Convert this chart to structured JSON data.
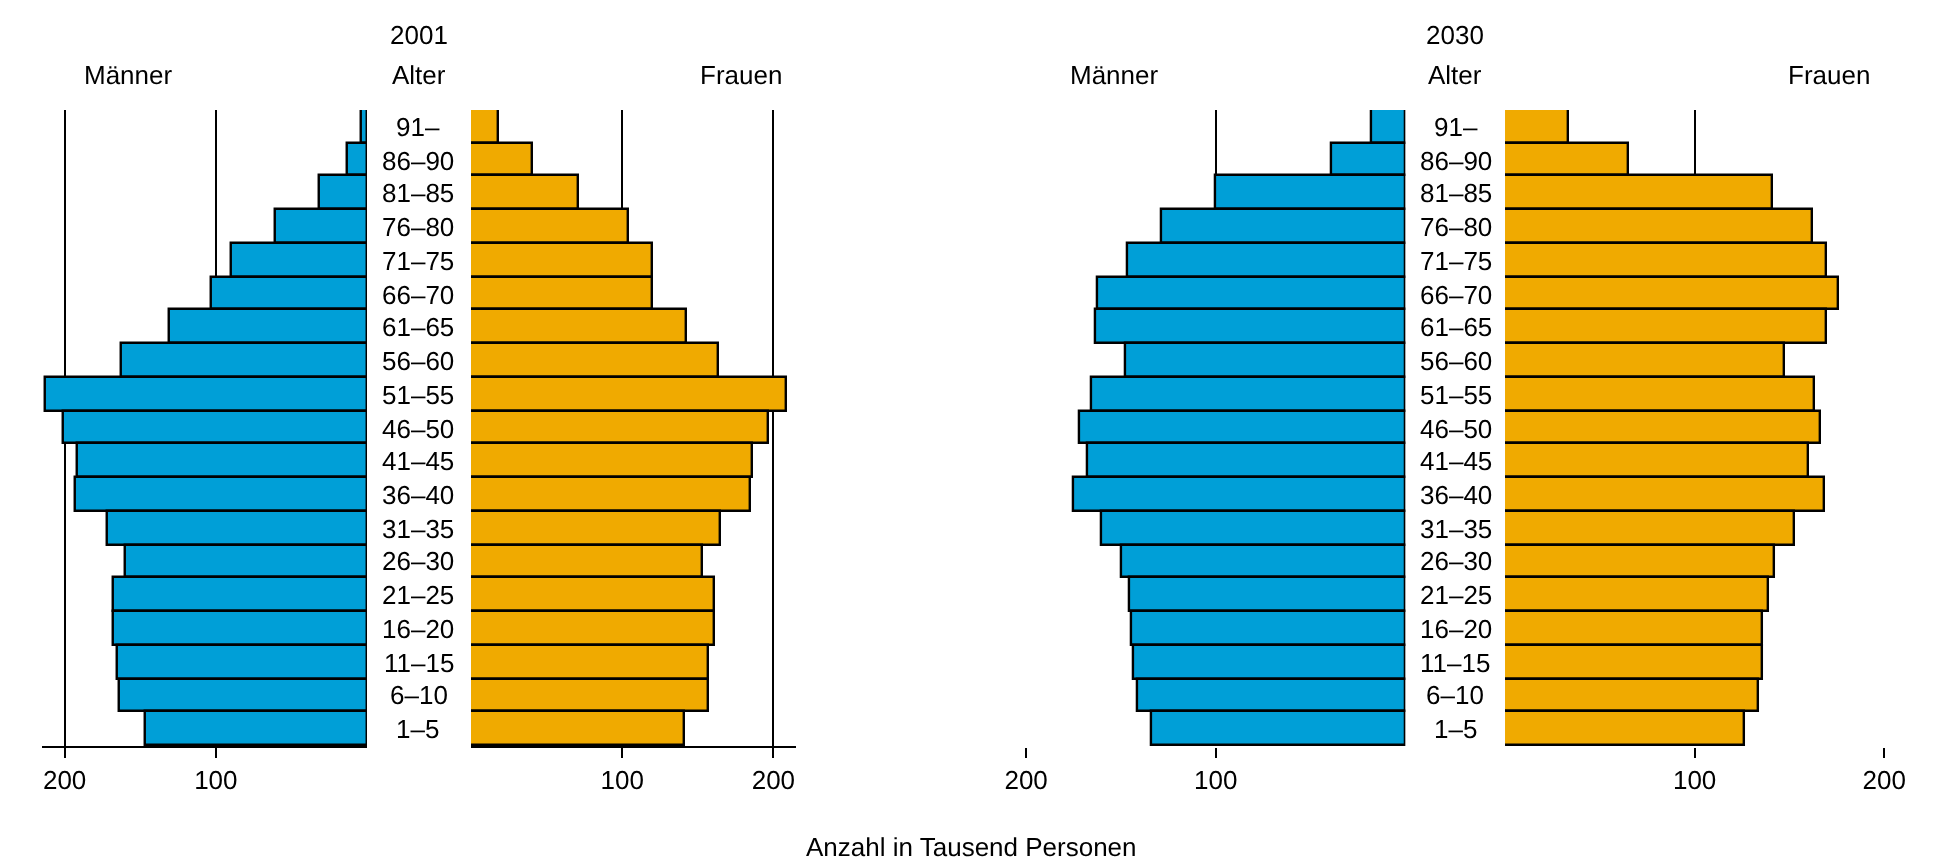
{
  "chart_data": [
    {
      "type": "bar",
      "orientation": "horizontal",
      "title": "Männer",
      "tick_labels": "x",
      "grid": "x",
      "categories": [
        "91–",
        "86–90",
        "81–85",
        "76–80",
        "71–75",
        "66–70",
        "61–65",
        "56–60",
        "51–55",
        "46–50",
        "41–45",
        "36–40",
        "31–35",
        "26–30",
        "21–25",
        "16–20",
        "11–15",
        "6–10",
        "1–5"
      ],
      "xlim": [
        215,
        0
      ],
      "xticks": [
        200,
        100
      ],
      "series": [
        {
          "color": "#009fd7",
          "values": [
            4,
            13,
            31,
            60,
            90,
            103,
            131,
            162,
            212,
            201,
            191,
            192,
            171,
            160,
            167,
            168,
            165,
            164,
            146
          ]
        }
      ]
    },
    {
      "type": "bar",
      "orientation": "horizontal",
      "title": "Frauen",
      "subtitle": "2001",
      "ylabel": "Alter",
      "grid": "x",
      "categories": [
        "91–",
        "86–90",
        "81–85",
        "76–80",
        "71–75",
        "66–70",
        "61–65",
        "56–60",
        "51–55",
        "46–50",
        "41–45",
        "36–40",
        "31–35",
        "26–30",
        "21–25",
        "16–20",
        "11–15",
        "6–10",
        "1–5"
      ],
      "xlim": [
        0,
        215
      ],
      "xticks": [
        100,
        200
      ],
      "series": [
        {
          "color": "#f0aa00",
          "values": [
            18,
            41,
            72,
            105,
            121,
            121,
            143,
            164,
            209,
            197,
            187,
            185,
            165,
            153,
            161,
            161,
            158,
            158,
            141
          ]
        }
      ]
    },
    {
      "type": "bar",
      "orientation": "horizontal",
      "title": "Männer",
      "tick_labels": "x",
      "grid": "x",
      "categories": [
        "91–",
        "86–90",
        "81–85",
        "76–80",
        "71–75",
        "66–70",
        "61–65",
        "56–60",
        "51–55",
        "46–50",
        "41–45",
        "36–40",
        "31–35",
        "26–30",
        "21–25",
        "16–20",
        "11–15",
        "6–10",
        "1–5"
      ],
      "xlim": [
        200,
        0
      ],
      "xticks": [
        200,
        100
      ],
      "series": [
        {
          "color": "#009fd7",
          "values": [
            17,
            39,
            100,
            128,
            146,
            162,
            163,
            147,
            165,
            172,
            167,
            175,
            160,
            149,
            145,
            144,
            143,
            141,
            134
          ]
        }
      ]
    },
    {
      "type": "bar",
      "orientation": "horizontal",
      "title": "Frauen",
      "subtitle": "2030",
      "ylabel": "Alter",
      "grid": "x",
      "categories": [
        "91–",
        "86–90",
        "81–85",
        "76–80",
        "71–75",
        "66–70",
        "61–65",
        "56–60",
        "51–55",
        "46–50",
        "41–45",
        "36–40",
        "31–35",
        "26–30",
        "21–25",
        "16–20",
        "11–15",
        "6–10",
        "1–5"
      ],
      "xlim": [
        0,
        200
      ],
      "xticks": [
        100,
        200
      ],
      "annotations": [
        "Anzahl in Tausend Personen"
      ],
      "series": [
        {
          "color": "#f0aa00",
          "values": [
            34,
            65,
            141,
            162,
            170,
            176,
            170,
            148,
            163,
            167,
            160,
            169,
            153,
            142,
            139,
            136,
            136,
            134,
            127
          ]
        }
      ]
    }
  ]
}
